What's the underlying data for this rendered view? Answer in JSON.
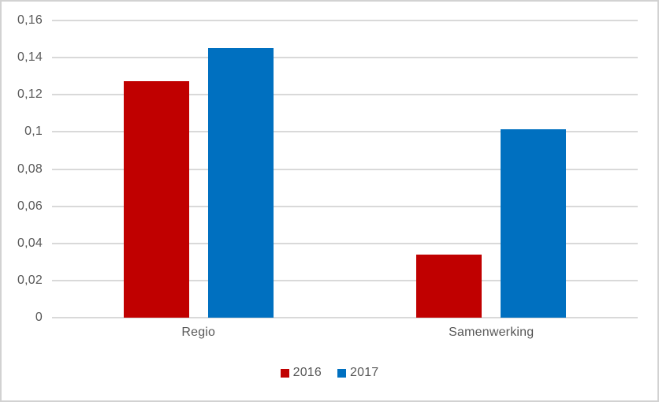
{
  "chart": {
    "background": "#FFFFFF",
    "border_color": "#D2D2D2",
    "gridline_color": "#D9D9D9",
    "text_color": "#595959"
  },
  "chart_data": {
    "type": "bar",
    "title": "",
    "xlabel": "",
    "ylabel": "",
    "categories": [
      "Regio",
      "Samenwerking"
    ],
    "series": [
      {
        "name": "2016",
        "color": "#C00000",
        "values": [
          0.1275,
          0.034
        ]
      },
      {
        "name": "2017",
        "color": "#0070C0",
        "values": [
          0.145,
          0.1015
        ]
      }
    ],
    "ylim": [
      0,
      0.16
    ],
    "ytick_step": 0.02,
    "ytick_labels": [
      "0",
      "0,02",
      "0,04",
      "0,06",
      "0,08",
      "0,1",
      "0,12",
      "0,14",
      "0,16"
    ],
    "decimal_separator": ",",
    "grid": true,
    "legend_position": "bottom"
  }
}
